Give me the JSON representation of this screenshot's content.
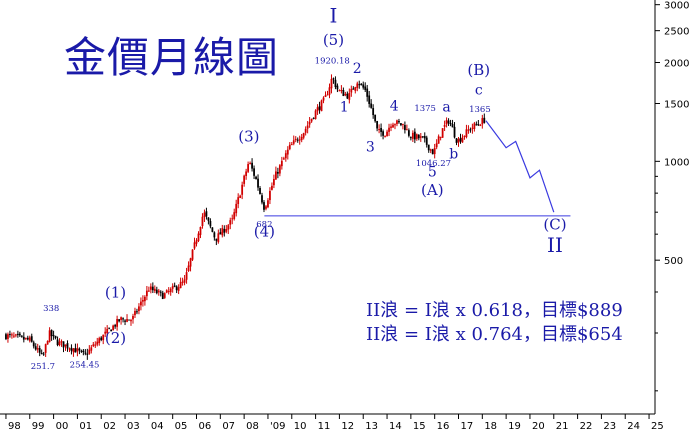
{
  "title": "金價月線圖",
  "annotations": [
    "II浪 = I浪 x 0.618，目標$889",
    "II浪 = I浪 x 0.764，目標$654"
  ],
  "chart_data": {
    "type": "candlestick",
    "scale": "log",
    "ylim": [
      170,
      3100
    ],
    "y_ticks": [
      500,
      1000,
      1500,
      2000,
      2500,
      3000
    ],
    "x_ticks": [
      "98",
      "99",
      "00",
      "01",
      "02",
      "03",
      "04",
      "05",
      "06",
      "07",
      "08",
      "09",
      "10",
      "11",
      "12",
      "13",
      "14",
      "15",
      "16",
      "17",
      "18",
      "19",
      "20",
      "21",
      "22",
      "23",
      "24",
      "25"
    ],
    "x_tick_labels": [
      "98",
      "99",
      "00",
      "01",
      "02",
      "03",
      "04",
      "05",
      "06",
      "07",
      "08",
      "'09",
      "10",
      "11",
      "12",
      "13",
      "14",
      "15",
      "16",
      "17",
      "18",
      "19",
      "20",
      "21",
      "22",
      "23",
      "24",
      "25"
    ],
    "price_path": [
      {
        "t": 1998.0,
        "p": 295
      },
      {
        "t": 1998.5,
        "p": 290
      },
      {
        "t": 1999.0,
        "p": 285
      },
      {
        "t": 1999.55,
        "p": 252
      },
      {
        "t": 1999.8,
        "p": 300
      },
      {
        "t": 2000.2,
        "p": 280
      },
      {
        "t": 2000.8,
        "p": 270
      },
      {
        "t": 2001.3,
        "p": 256
      },
      {
        "t": 2002.0,
        "p": 290
      },
      {
        "t": 2002.8,
        "p": 330
      },
      {
        "t": 2003.3,
        "p": 330
      },
      {
        "t": 2004.0,
        "p": 410
      },
      {
        "t": 2004.6,
        "p": 390
      },
      {
        "t": 2005.5,
        "p": 430
      },
      {
        "t": 2006.3,
        "p": 700
      },
      {
        "t": 2006.8,
        "p": 580
      },
      {
        "t": 2007.5,
        "p": 660
      },
      {
        "t": 2008.2,
        "p": 1000
      },
      {
        "t": 2008.5,
        "p": 880
      },
      {
        "t": 2008.85,
        "p": 720
      },
      {
        "t": 2009.3,
        "p": 900
      },
      {
        "t": 2009.9,
        "p": 1100
      },
      {
        "t": 2010.5,
        "p": 1230
      },
      {
        "t": 2010.95,
        "p": 1400
      },
      {
        "t": 2011.4,
        "p": 1550
      },
      {
        "t": 2011.7,
        "p": 1800
      },
      {
        "t": 2011.95,
        "p": 1640
      },
      {
        "t": 2012.4,
        "p": 1580
      },
      {
        "t": 2012.75,
        "p": 1760
      },
      {
        "t": 2013.1,
        "p": 1640
      },
      {
        "t": 2013.4,
        "p": 1400
      },
      {
        "t": 2013.6,
        "p": 1230
      },
      {
        "t": 2013.95,
        "p": 1220
      },
      {
        "t": 2014.2,
        "p": 1320
      },
      {
        "t": 2014.7,
        "p": 1290
      },
      {
        "t": 2014.95,
        "p": 1200
      },
      {
        "t": 2015.5,
        "p": 1170
      },
      {
        "t": 2015.95,
        "p": 1060
      },
      {
        "t": 2016.3,
        "p": 1240
      },
      {
        "t": 2016.6,
        "p": 1340
      },
      {
        "t": 2016.95,
        "p": 1150
      },
      {
        "t": 2017.5,
        "p": 1260
      },
      {
        "t": 2018.1,
        "p": 1340
      }
    ],
    "projection": [
      {
        "t": 2018.15,
        "p": 1330
      },
      {
        "t": 2019.0,
        "p": 1100
      },
      {
        "t": 2019.4,
        "p": 1150
      },
      {
        "t": 2020.0,
        "p": 890
      },
      {
        "t": 2020.4,
        "p": 940
      },
      {
        "t": 2021.0,
        "p": 700
      }
    ],
    "support_line": {
      "price": 682,
      "from": 2008.85,
      "to": 2021.7
    },
    "price_labels": [
      {
        "t": 2011.7,
        "p": 1920.18,
        "text": "1920.18",
        "pos": "above"
      },
      {
        "t": 2008.85,
        "p": 682,
        "text": "682",
        "pos": "below"
      },
      {
        "t": 1999.55,
        "p": 251.7,
        "text": "251.7",
        "pos": "below"
      },
      {
        "t": 2001.3,
        "p": 254.45,
        "text": "254.45",
        "pos": "below"
      },
      {
        "t": 1999.9,
        "p": 338,
        "text": "338",
        "pos": "above"
      },
      {
        "t": 2015.95,
        "p": 1046.27,
        "text": "1046.27",
        "pos": "below"
      },
      {
        "t": 2015.6,
        "p": 1375,
        "text": "1375",
        "pos": "above"
      },
      {
        "t": 2017.9,
        "p": 1365,
        "text": "1365",
        "pos": "above"
      }
    ],
    "wave_labels": [
      {
        "t": 2011.75,
        "p": 2650,
        "text": "I",
        "size": 20
      },
      {
        "t": 2011.75,
        "p": 2260,
        "text": "(5)",
        "size": 15
      },
      {
        "t": 2012.75,
        "p": 1860,
        "text": "2",
        "size": 14
      },
      {
        "t": 2012.2,
        "p": 1420,
        "text": "1",
        "size": 14
      },
      {
        "t": 2013.3,
        "p": 1070,
        "text": "3",
        "size": 14
      },
      {
        "t": 2014.3,
        "p": 1430,
        "text": "4",
        "size": 14
      },
      {
        "t": 2015.9,
        "p": 900,
        "text": "5",
        "size": 14
      },
      {
        "t": 2015.9,
        "p": 790,
        "text": "(A)",
        "size": 15
      },
      {
        "t": 2016.5,
        "p": 1420,
        "text": "a",
        "size": 14
      },
      {
        "t": 2016.8,
        "p": 1020,
        "text": "b",
        "size": 14
      },
      {
        "t": 2017.85,
        "p": 1830,
        "text": "(B)",
        "size": 15
      },
      {
        "t": 2017.85,
        "p": 1600,
        "text": "c",
        "size": 14
      },
      {
        "t": 2008.2,
        "p": 1150,
        "text": "(3)",
        "size": 15
      },
      {
        "t": 2008.85,
        "p": 590,
        "text": "(4)",
        "size": 15
      },
      {
        "t": 2002.6,
        "p": 385,
        "text": "(1)",
        "size": 15
      },
      {
        "t": 2002.6,
        "p": 280,
        "text": "(2)",
        "size": 15
      },
      {
        "t": 2021.05,
        "p": 620,
        "text": "(C)",
        "size": 15
      },
      {
        "t": 2021.05,
        "p": 530,
        "text": "II",
        "size": 20
      }
    ]
  },
  "colors": {
    "candle_up": "#d10000",
    "candle_down": "#000000",
    "wave_text": "#1a1aa8",
    "projection": "#3a3ae0",
    "grid": "#cccccc",
    "axis": "#000000"
  }
}
